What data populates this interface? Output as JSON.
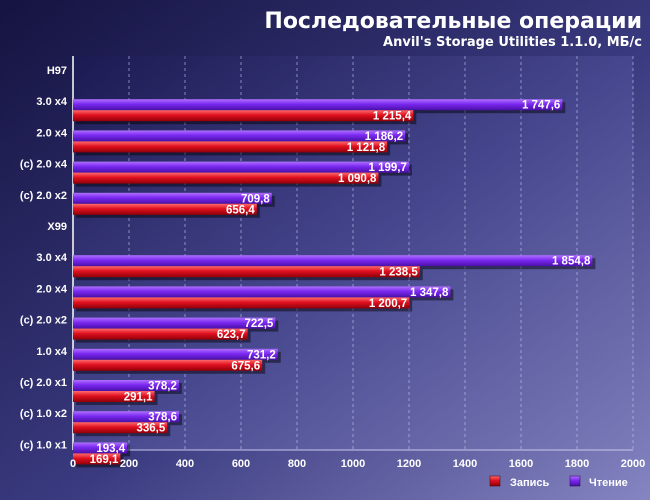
{
  "chart_data": {
    "type": "bar",
    "orientation": "horizontal",
    "title": "Последовательные операции",
    "subtitle": "Anvil's Storage Utilities 1.1.0, МБ/с",
    "xlim": [
      0,
      2000
    ],
    "x_ticks": [
      "0",
      "200",
      "400",
      "600",
      "800",
      "1000",
      "1200",
      "1400",
      "1600",
      "1800",
      "2000"
    ],
    "grid": true,
    "legend_position": "bottom-right",
    "categories": [
      "H97",
      "3.0 x4",
      "2.0 x4",
      "(c) 2.0 x4",
      "(c) 2.0 x2",
      "X99",
      "3.0 x4",
      "2.0 x4",
      "(c) 2.0 x2",
      "1.0 x4",
      "(c) 2.0 x1",
      "(c) 1.0 x2",
      "(c) 1.0 x1"
    ],
    "series": [
      {
        "name": "Чтение",
        "color": "#7a2cf0",
        "values": [
          null,
          1747.6,
          1186.2,
          1199.7,
          709.8,
          null,
          1854.8,
          1347.8,
          722.5,
          731.2,
          378.2,
          378.6,
          193.4
        ],
        "labels": [
          "",
          "1 747,6",
          "1 186,2",
          "1 199,7",
          "709,8",
          "",
          "1 854,8",
          "1 347,8",
          "722,5",
          "731,2",
          "378,2",
          "378,6",
          "193,4"
        ]
      },
      {
        "name": "Запись",
        "color": "#d0101c",
        "values": [
          null,
          1215.4,
          1121.8,
          1090.8,
          656.4,
          null,
          1238.5,
          1200.7,
          623.7,
          675.6,
          291.1,
          336.5,
          169.1
        ],
        "labels": [
          "",
          "1 215,4",
          "1 121,8",
          "1 090,8",
          "656,4",
          "",
          "1 238,5",
          "1 200,7",
          "623,7",
          "675,6",
          "291,1",
          "336,5",
          "169,1"
        ]
      }
    ],
    "legend": [
      "Запись",
      "Чтение"
    ]
  }
}
